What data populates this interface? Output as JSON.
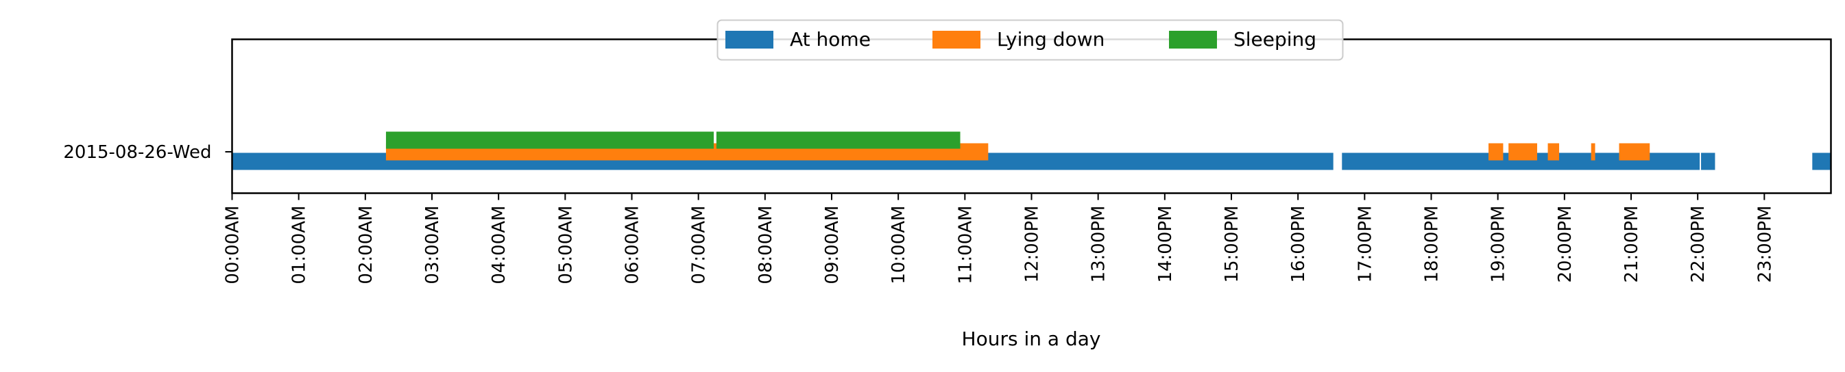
{
  "chart_data": {
    "type": "bar",
    "orientation": "horizontal-timeline",
    "xlabel": "Hours in a day",
    "ylabel": "",
    "xlim": [
      0,
      24
    ],
    "x_ticks": [
      {
        "value": 0,
        "label": "00:00AM"
      },
      {
        "value": 1,
        "label": "01:00AM"
      },
      {
        "value": 2,
        "label": "02:00AM"
      },
      {
        "value": 3,
        "label": "03:00AM"
      },
      {
        "value": 4,
        "label": "04:00AM"
      },
      {
        "value": 5,
        "label": "05:00AM"
      },
      {
        "value": 6,
        "label": "06:00AM"
      },
      {
        "value": 7,
        "label": "07:00AM"
      },
      {
        "value": 8,
        "label": "08:00AM"
      },
      {
        "value": 9,
        "label": "09:00AM"
      },
      {
        "value": 10,
        "label": "10:00AM"
      },
      {
        "value": 11,
        "label": "11:00AM"
      },
      {
        "value": 12,
        "label": "12:00PM"
      },
      {
        "value": 13,
        "label": "13:00PM"
      },
      {
        "value": 14,
        "label": "14:00PM"
      },
      {
        "value": 15,
        "label": "15:00PM"
      },
      {
        "value": 16,
        "label": "16:00PM"
      },
      {
        "value": 17,
        "label": "17:00PM"
      },
      {
        "value": 18,
        "label": "18:00PM"
      },
      {
        "value": 19,
        "label": "19:00PM"
      },
      {
        "value": 20,
        "label": "20:00PM"
      },
      {
        "value": 21,
        "label": "21:00PM"
      },
      {
        "value": 22,
        "label": "22:00PM"
      },
      {
        "value": 23,
        "label": "23:00PM"
      }
    ],
    "categories": [
      "2015-08-26-Wed"
    ],
    "grid": false,
    "legend": {
      "placement": "top-center",
      "columns": 3
    },
    "series": [
      {
        "name": "At home",
        "color": "#1f77b4",
        "segments": [
          {
            "start": 0.0,
            "end": 16.53
          },
          {
            "start": 16.66,
            "end": 22.03
          },
          {
            "start": 22.05,
            "end": 22.26
          },
          {
            "start": 23.72,
            "end": 24.0
          }
        ]
      },
      {
        "name": "Lying down",
        "color": "#ff7f0e",
        "segments": [
          {
            "start": 2.31,
            "end": 11.35
          },
          {
            "start": 18.86,
            "end": 19.08
          },
          {
            "start": 19.16,
            "end": 19.59
          },
          {
            "start": 19.75,
            "end": 19.92
          },
          {
            "start": 20.4,
            "end": 20.46
          },
          {
            "start": 20.82,
            "end": 21.28
          }
        ]
      },
      {
        "name": "Sleeping",
        "color": "#2ca02c",
        "segments": [
          {
            "start": 2.31,
            "end": 7.23
          },
          {
            "start": 7.27,
            "end": 10.93
          }
        ]
      }
    ]
  }
}
